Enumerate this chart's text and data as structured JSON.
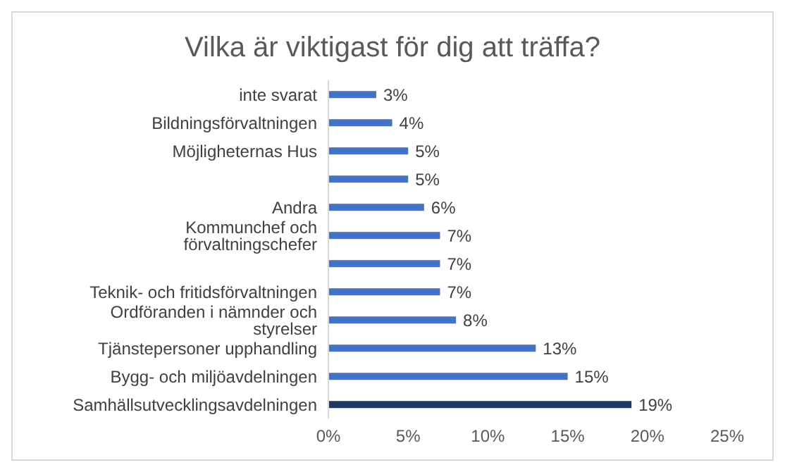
{
  "chart_data": {
    "type": "bar",
    "orientation": "horizontal",
    "title": "Vilka är viktigast för dig att träffa?",
    "categories": [
      "inte svarat",
      "Bildningsförvaltningen",
      "Möjligheternas Hus",
      null,
      "Andra",
      "Kommunchef och förvaltningschefer",
      null,
      "Teknik- och fritidsförvaltningen",
      "Ordföranden i nämnder och styrelser",
      "Tjänstepersoner upphandling",
      "Bygg- och miljöavdelningen",
      "Samhällsutvecklingsavdelningen"
    ],
    "values": [
      3,
      4,
      5,
      5,
      6,
      7,
      7,
      7,
      8,
      13,
      15,
      19
    ],
    "value_labels": [
      "3%",
      "4%",
      "5%",
      "5%",
      "6%",
      "7%",
      "7%",
      "7%",
      "8%",
      "13%",
      "15%",
      "19%"
    ],
    "colors": [
      "#4472c4",
      "#4472c4",
      "#4472c4",
      "#4472c4",
      "#4472c4",
      "#4472c4",
      "#4472c4",
      "#4472c4",
      "#4472c4",
      "#4472c4",
      "#4472c4",
      "#1f3864"
    ],
    "xlim": [
      0,
      25
    ],
    "xticks": [
      {
        "value": 0,
        "label": "0%"
      },
      {
        "value": 5,
        "label": "5%"
      },
      {
        "value": 10,
        "label": "10%"
      },
      {
        "value": 15,
        "label": "15%"
      },
      {
        "value": 20,
        "label": "20%"
      },
      {
        "value": 25,
        "label": "25%"
      }
    ],
    "grid": false
  }
}
